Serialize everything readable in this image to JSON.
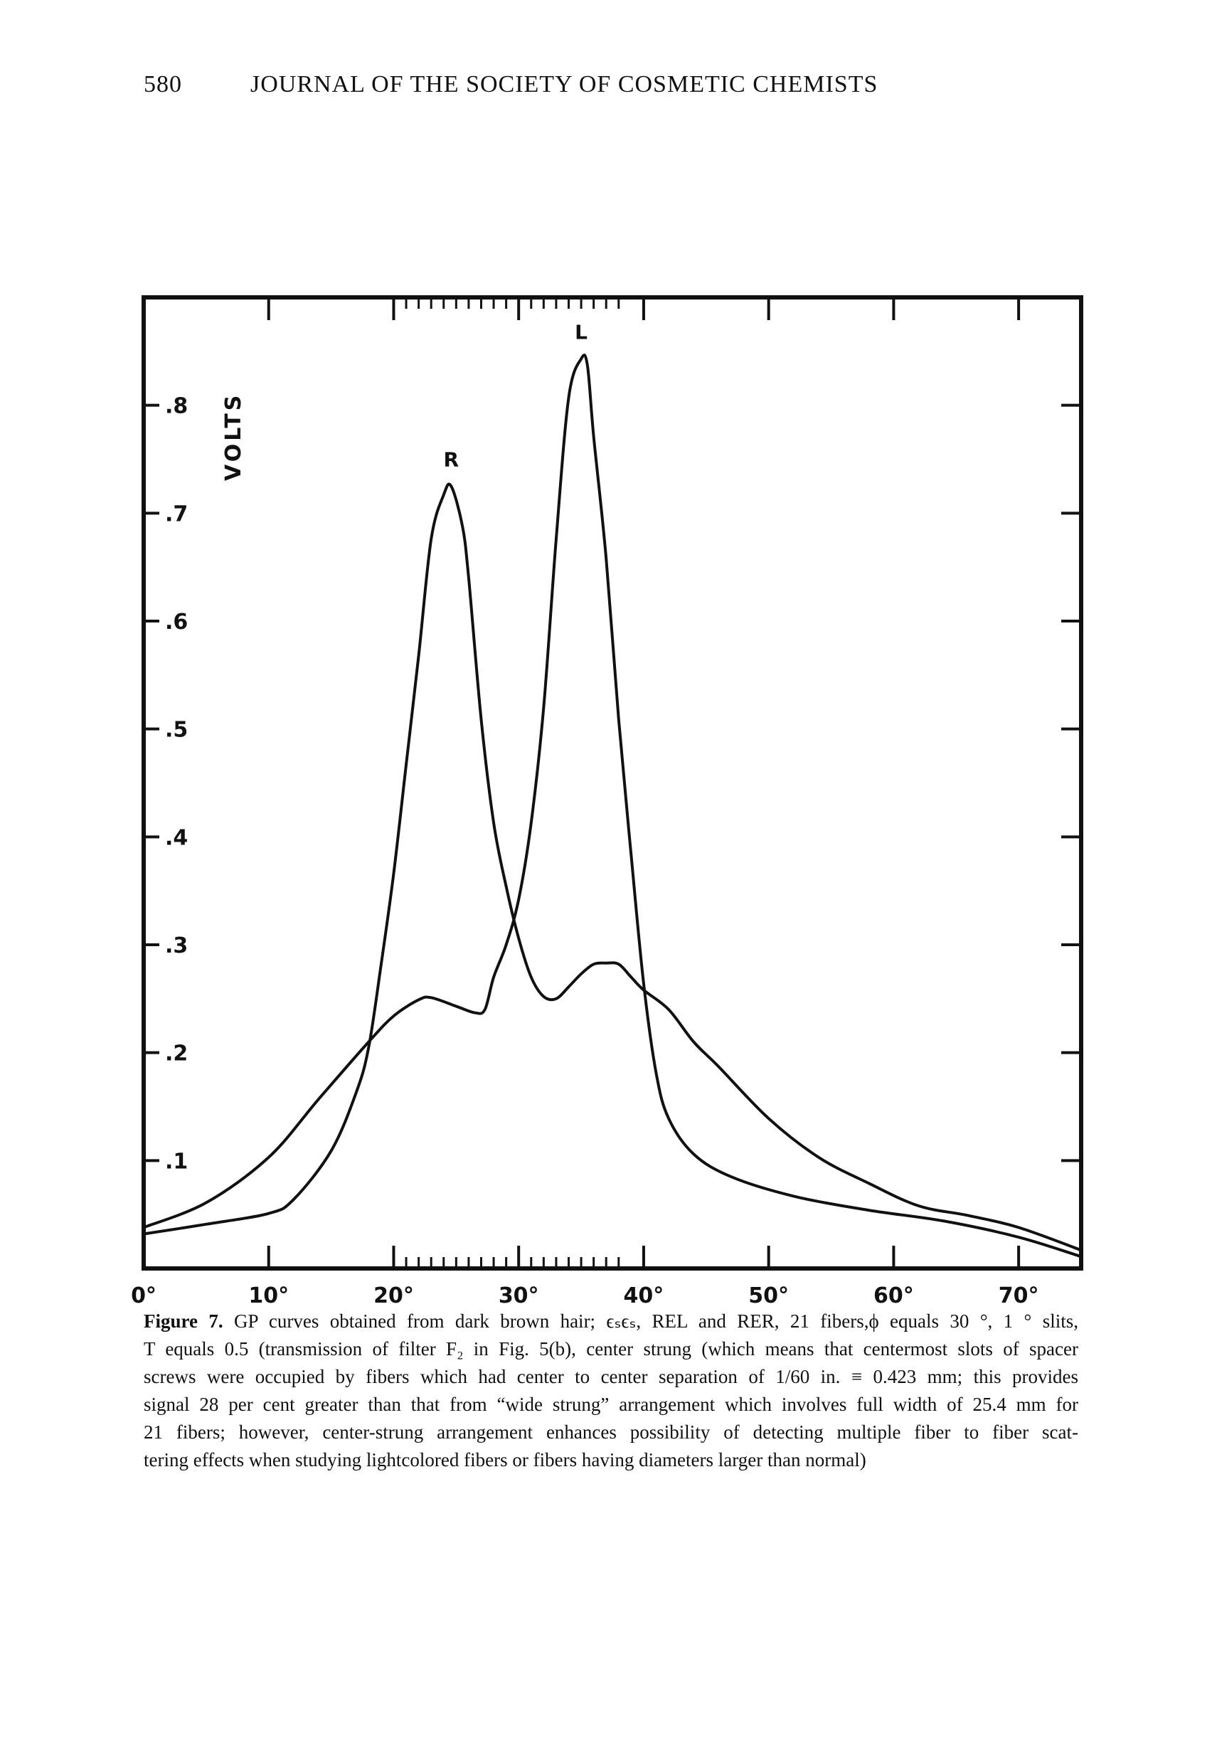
{
  "header": {
    "page_number": "580",
    "journal_title": "JOURNAL OF THE SOCIETY OF COSMETIC CHEMISTS"
  },
  "chart_data": {
    "type": "line",
    "title": "",
    "xlabel": "",
    "ylabel": "VOLTS",
    "xlim": [
      0,
      75
    ],
    "ylim": [
      0,
      0.9
    ],
    "x_ticks": [
      0,
      10,
      20,
      30,
      40,
      50,
      60,
      70
    ],
    "x_tick_labels": [
      "0°",
      "10°",
      "20°",
      "30°",
      "40°",
      "50°",
      "60°",
      "70°"
    ],
    "y_ticks": [
      0.1,
      0.2,
      0.3,
      0.4,
      0.5,
      0.6,
      0.7,
      0.8
    ],
    "y_tick_labels": [
      ".1",
      ".2",
      ".3",
      ".4",
      ".5",
      ".6",
      ".7",
      ".8"
    ],
    "minor_x_ticks_range": [
      20,
      38
    ],
    "grid": false,
    "series": [
      {
        "name": "R",
        "peak_label": "R",
        "x": [
          0,
          5,
          10,
          12,
          15,
          17,
          18,
          19,
          20,
          21,
          22,
          23,
          24,
          24.6,
          25.5,
          26,
          27,
          28,
          29,
          30,
          31,
          32,
          33,
          34,
          35,
          36,
          37,
          38,
          39,
          40,
          42,
          44,
          46,
          50,
          54,
          58,
          62,
          66,
          70,
          75
        ],
        "y": [
          0.032,
          0.041,
          0.051,
          0.064,
          0.109,
          0.163,
          0.205,
          0.282,
          0.366,
          0.467,
          0.568,
          0.676,
          0.717,
          0.725,
          0.688,
          0.64,
          0.509,
          0.413,
          0.354,
          0.306,
          0.27,
          0.252,
          0.25,
          0.261,
          0.273,
          0.282,
          0.283,
          0.282,
          0.27,
          0.258,
          0.24,
          0.21,
          0.187,
          0.139,
          0.103,
          0.079,
          0.058,
          0.049,
          0.038,
          0.017
        ]
      },
      {
        "name": "L",
        "peak_label": "L",
        "x": [
          0,
          5,
          10,
          14,
          18,
          20,
          22,
          23,
          25,
          26.5,
          27.3,
          28,
          29,
          30,
          31,
          32,
          33,
          34,
          35,
          35.5,
          36,
          37,
          38,
          39,
          40,
          41,
          42,
          44,
          47,
          52,
          58,
          64,
          70,
          75
        ],
        "y": [
          0.038,
          0.061,
          0.103,
          0.157,
          0.21,
          0.234,
          0.249,
          0.251,
          0.243,
          0.237,
          0.24,
          0.27,
          0.3,
          0.342,
          0.413,
          0.52,
          0.676,
          0.807,
          0.843,
          0.837,
          0.771,
          0.658,
          0.509,
          0.383,
          0.264,
          0.181,
          0.139,
          0.106,
          0.085,
          0.067,
          0.054,
          0.044,
          0.029,
          0.011
        ]
      }
    ]
  },
  "caption": {
    "figure_label": "Figure 7.",
    "lines": [
      " GP curves obtained from dark brown hair; ϵₛϵₛ, REL and RER, 21 fibers,ϕ equals 30 °, 1 ° slits,",
      "T equals 0.5 (transmission of filter F₂ in Fig. 5(b), center strung (which means that centermost slots of spacer",
      "screws were occupied by fibers which had center to center separation of 1/60 in. ≡ 0.423 mm; this provides",
      "signal 28 per cent greater than that from “wide strung” arrangement which involves full width of 25.4 mm for",
      "21 fibers; however, center-strung arrangement enhances possibility of detecting multiple fiber to fiber scat-",
      "tering effects when studying lightcolored fibers or fibers having diameters larger than normal)"
    ]
  }
}
